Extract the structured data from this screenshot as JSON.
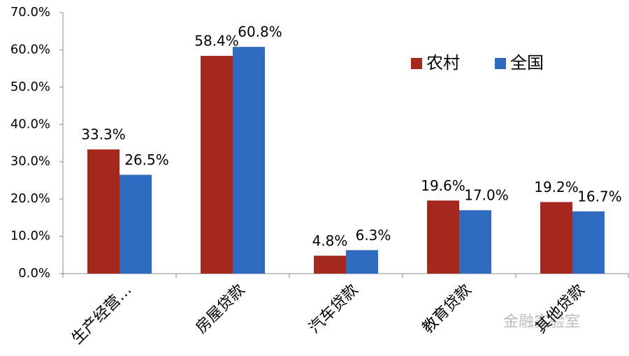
{
  "chart_data": {
    "type": "bar",
    "categories": [
      "生产经营…",
      "房屋贷款",
      "汽车贷款",
      "教育贷款",
      "其他贷款"
    ],
    "series": [
      {
        "name": "农村",
        "color": "#a5281f",
        "values": [
          33.3,
          58.4,
          4.8,
          19.6,
          19.2
        ],
        "value_labels": [
          "33.3%",
          "58.4%",
          "4.8%",
          "19.6%",
          "19.2%"
        ]
      },
      {
        "name": "全国",
        "color": "#2e6bbf",
        "values": [
          26.5,
          60.8,
          6.3,
          17.0,
          16.7
        ],
        "value_labels": [
          "26.5%",
          "60.8%",
          "6.3%",
          "17.0%",
          "16.7%"
        ]
      }
    ],
    "ylim": [
      0,
      70
    ],
    "yticks": [
      {
        "value": 0,
        "label": "0.0%"
      },
      {
        "value": 10,
        "label": "10.0%"
      },
      {
        "value": 20,
        "label": "20.0%"
      },
      {
        "value": 30,
        "label": "30.0%"
      },
      {
        "value": 40,
        "label": "40.0%"
      },
      {
        "value": 50,
        "label": "50.0%"
      },
      {
        "value": 60,
        "label": "60.0%"
      },
      {
        "value": 70,
        "label": "70.0%"
      }
    ],
    "legend": "upper right",
    "watermark": "金融实验室"
  }
}
